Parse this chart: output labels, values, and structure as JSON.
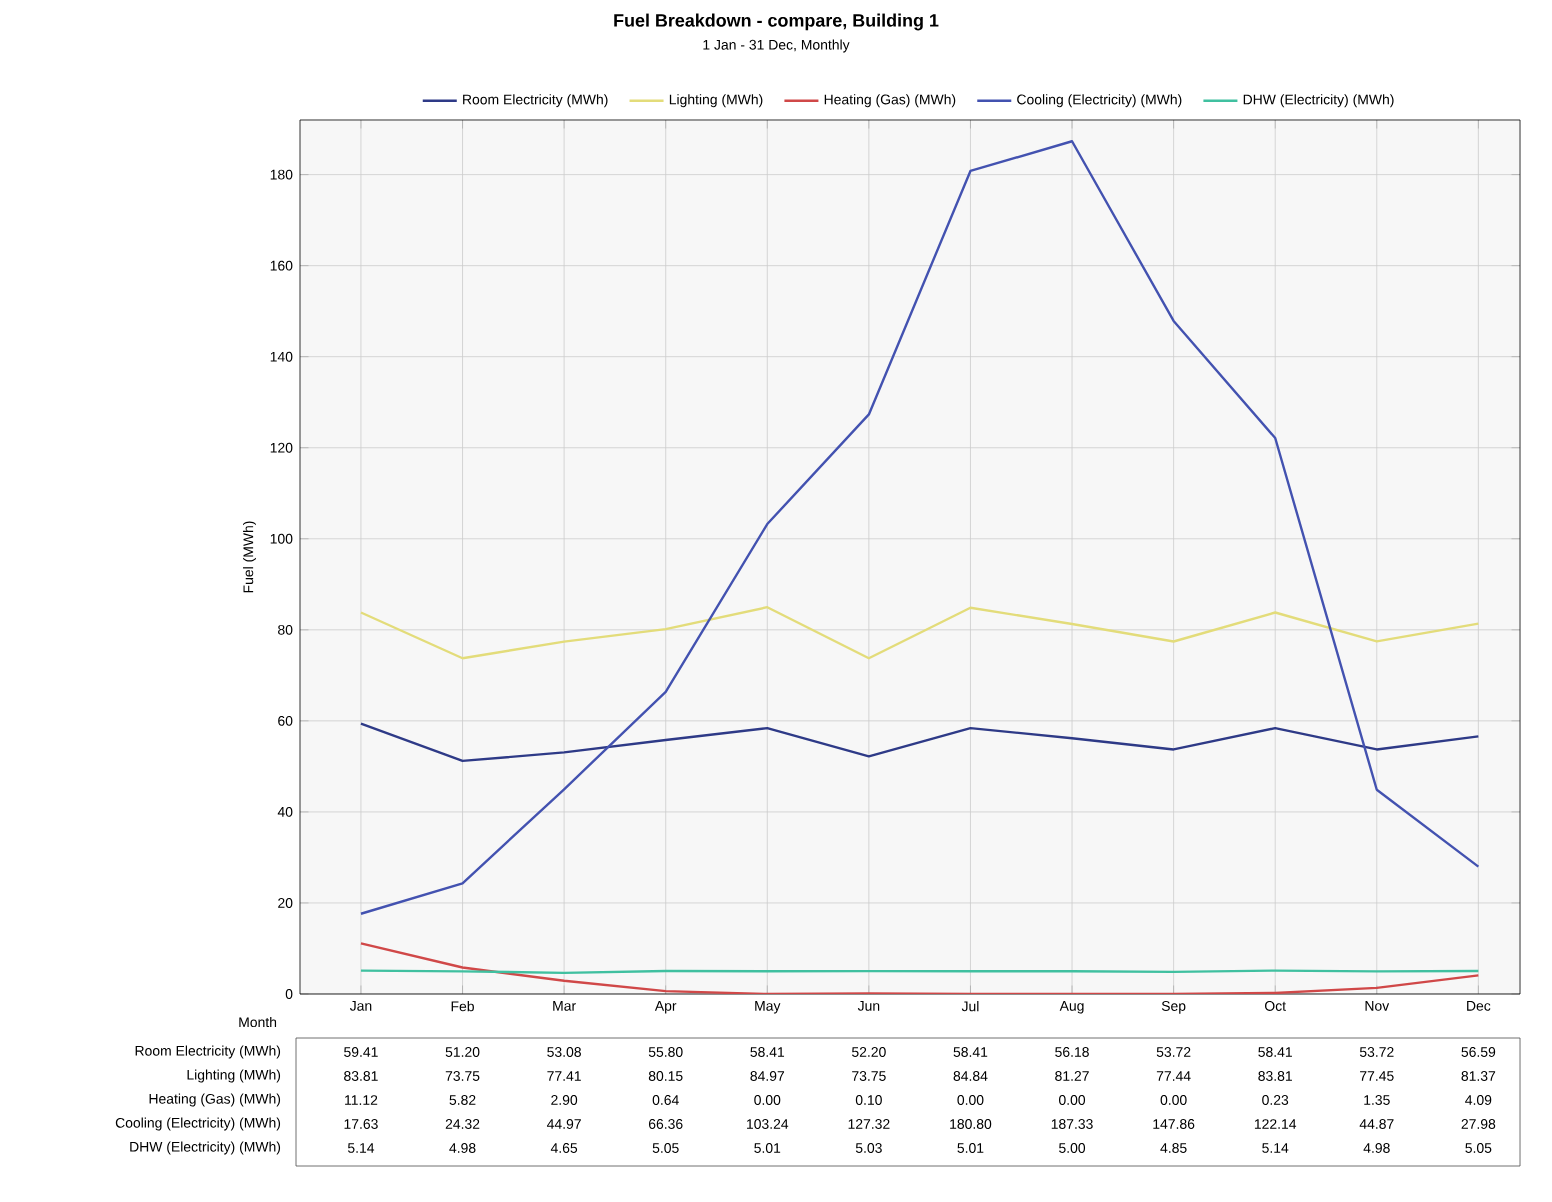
{
  "chart_data": {
    "type": "line",
    "title": "Fuel Breakdown - compare, Building 1",
    "subtitle": "1 Jan - 31 Dec, Monthly",
    "annotations": [
      "Month"
    ],
    "ylabel": "Fuel (MWh)",
    "categories": [
      "Jan",
      "Feb",
      "Mar",
      "Apr",
      "May",
      "Jun",
      "Jul",
      "Aug",
      "Sep",
      "Oct",
      "Nov",
      "Dec"
    ],
    "series": [
      {
        "name": "Room Electricity (MWh)",
        "color": "#2e3a87",
        "values": [
          59.41,
          51.2,
          53.08,
          55.8,
          58.41,
          52.2,
          58.41,
          56.18,
          53.72,
          58.41,
          53.72,
          56.59
        ],
        "value_labels": [
          "59.41",
          "51.20",
          "53.08",
          "55.80",
          "58.41",
          "52.20",
          "58.41",
          "56.18",
          "53.72",
          "58.41",
          "53.72",
          "56.59"
        ]
      },
      {
        "name": "Lighting (MWh)",
        "color": "#e3dc7a",
        "values": [
          83.81,
          73.75,
          77.41,
          80.15,
          84.97,
          73.75,
          84.84,
          81.27,
          77.44,
          83.81,
          77.45,
          81.37
        ],
        "value_labels": [
          "83.81",
          "73.75",
          "77.41",
          "80.15",
          "84.97",
          "73.75",
          "84.84",
          "81.27",
          "77.44",
          "83.81",
          "77.45",
          "81.37"
        ]
      },
      {
        "name": "Heating (Gas) (MWh)",
        "color": "#d04848",
        "values": [
          11.12,
          5.82,
          2.9,
          0.64,
          0.0,
          0.1,
          0.0,
          0.0,
          0.0,
          0.23,
          1.35,
          4.09
        ],
        "value_labels": [
          "11.12",
          "5.82",
          "2.90",
          "0.64",
          "0.00",
          "0.10",
          "0.00",
          "0.00",
          "0.00",
          "0.23",
          "1.35",
          "4.09"
        ]
      },
      {
        "name": "Cooling (Electricity) (MWh)",
        "color": "#4352b0",
        "values": [
          17.63,
          24.32,
          44.97,
          66.36,
          103.24,
          127.32,
          180.8,
          187.33,
          147.86,
          122.14,
          44.87,
          27.98
        ],
        "value_labels": [
          "17.63",
          "24.32",
          "44.97",
          "66.36",
          "103.24",
          "127.32",
          "180.80",
          "187.33",
          "147.86",
          "122.14",
          "44.87",
          "27.98"
        ]
      },
      {
        "name": "DHW (Electricity) (MWh)",
        "color": "#40c0a0",
        "values": [
          5.14,
          4.98,
          4.65,
          5.05,
          5.01,
          5.03,
          5.01,
          5.0,
          4.85,
          5.14,
          4.98,
          5.05
        ],
        "value_labels": [
          "5.14",
          "4.98",
          "4.65",
          "5.05",
          "5.01",
          "5.03",
          "5.01",
          "5.00",
          "4.85",
          "5.14",
          "4.98",
          "5.05"
        ]
      }
    ],
    "ylim": [
      0,
      192
    ],
    "yticks": [
      0,
      20,
      40,
      60,
      80,
      100,
      120,
      140,
      160,
      180
    ],
    "grid": true,
    "legend": "top",
    "marker": "none",
    "line_style": "solid"
  }
}
